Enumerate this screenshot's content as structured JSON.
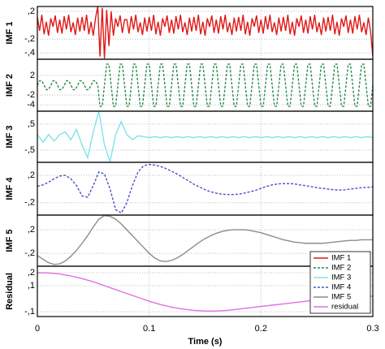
{
  "chart_data": [
    {
      "type": "line",
      "ylabel": "IMF 1",
      "xlim": [
        0,
        0.3
      ],
      "ylim": [
        -0.49,
        0.27
      ],
      "yticks": [
        {
          "value": 0.2,
          "label": ",2"
        },
        {
          "value": -0.2,
          "label": "-,2"
        },
        {
          "value": -0.4,
          "label": "-,4"
        }
      ],
      "x": [
        0,
        0.002,
        0.004,
        0.006,
        0.008,
        0.01,
        0.012,
        0.014,
        0.016,
        0.018,
        0.02,
        0.022,
        0.024,
        0.026,
        0.028,
        0.03,
        0.032,
        0.034,
        0.036,
        0.038,
        0.04,
        0.042,
        0.044,
        0.046,
        0.048,
        0.05,
        0.052,
        0.054,
        0.056,
        0.058,
        0.06,
        0.062,
        0.064,
        0.066,
        0.068,
        0.07,
        0.072,
        0.074,
        0.076,
        0.078,
        0.08,
        0.082,
        0.084,
        0.086,
        0.088,
        0.09,
        0.092,
        0.094,
        0.096,
        0.098,
        0.1,
        0.102,
        0.104,
        0.106,
        0.108,
        0.11,
        0.112,
        0.114,
        0.116,
        0.118,
        0.12,
        0.122,
        0.124,
        0.126,
        0.128,
        0.13,
        0.132,
        0.134,
        0.136,
        0.138,
        0.14,
        0.142,
        0.144,
        0.146,
        0.148,
        0.15,
        0.152,
        0.154,
        0.156,
        0.158,
        0.16,
        0.162,
        0.164,
        0.166,
        0.168,
        0.17,
        0.172,
        0.174,
        0.176,
        0.178,
        0.18,
        0.182,
        0.184,
        0.186,
        0.188,
        0.19,
        0.192,
        0.194,
        0.196,
        0.198,
        0.2,
        0.202,
        0.204,
        0.206,
        0.208,
        0.21,
        0.212,
        0.214,
        0.216,
        0.218,
        0.22,
        0.222,
        0.224,
        0.226,
        0.228,
        0.23,
        0.232,
        0.234,
        0.236,
        0.238,
        0.24,
        0.242,
        0.244,
        0.246,
        0.248,
        0.25,
        0.252,
        0.254,
        0.256,
        0.258,
        0.26,
        0.262,
        0.264,
        0.266,
        0.268,
        0.27,
        0.272,
        0.274,
        0.276,
        0.278,
        0.28,
        0.282,
        0.284,
        0.286,
        0.288,
        0.29,
        0.292,
        0.294,
        0.296,
        0.298,
        0.3
      ],
      "series": [
        {
          "name": "IMF 1",
          "color": "#e01818",
          "dashed": false,
          "values": [
            0.12,
            -0.08,
            0.15,
            -0.13,
            0.05,
            -0.15,
            0.1,
            -0.02,
            0.14,
            -0.11,
            0.08,
            -0.12,
            0.13,
            -0.06,
            0.15,
            -0.1,
            0.04,
            -0.14,
            0.11,
            -0.09,
            0.12,
            -0.08,
            0.15,
            -0.13,
            0.05,
            -0.15,
            0.1,
            0.27,
            -0.45,
            0.25,
            -0.48,
            0.22,
            -0.3,
            0.2,
            -0.15,
            0.1,
            -0.02,
            0.14,
            -0.11,
            0.08,
            0.08,
            -0.12,
            0.13,
            -0.06,
            0.15,
            -0.1,
            0.04,
            -0.14,
            0.11,
            -0.09,
            0.12,
            -0.08,
            0.15,
            -0.13,
            0.05,
            -0.15,
            0.1,
            -0.02,
            0.14,
            -0.11,
            0.08,
            -0.12,
            0.13,
            -0.06,
            0.15,
            -0.1,
            0.04,
            -0.14,
            0.11,
            -0.09,
            0.12,
            -0.08,
            0.15,
            -0.13,
            0.05,
            -0.15,
            0.1,
            -0.02,
            0.14,
            -0.11,
            0.08,
            -0.12,
            0.13,
            -0.06,
            0.15,
            -0.1,
            0.04,
            -0.14,
            0.11,
            -0.09,
            0.12,
            -0.08,
            0.15,
            -0.13,
            0.05,
            -0.15,
            0.1,
            -0.02,
            0.14,
            -0.11,
            0.08,
            -0.12,
            0.13,
            -0.06,
            0.15,
            -0.1,
            0.04,
            -0.14,
            0.11,
            -0.09,
            0.12,
            -0.08,
            0.15,
            -0.13,
            0.05,
            -0.15,
            0.1,
            -0.02,
            0.14,
            -0.11,
            0.08,
            -0.12,
            0.13,
            -0.06,
            0.15,
            -0.1,
            0.04,
            -0.14,
            0.11,
            -0.09,
            0.12,
            -0.08,
            0.15,
            -0.13,
            0.05,
            -0.15,
            0.1,
            -0.02,
            0.14,
            -0.11,
            0.08,
            -0.12,
            0.13,
            -0.06,
            0.15,
            -0.1,
            0.04,
            -0.14,
            0.11,
            -0.09,
            -0.45
          ]
        }
      ]
    },
    {
      "type": "line",
      "ylabel": "IMF 2",
      "xlim": [
        0,
        0.3
      ],
      "ylim": [
        -5.3,
        5.3
      ],
      "yticks": [
        2,
        -2,
        -4
      ],
      "x": [
        0,
        0.002,
        0.004,
        0.006,
        0.008,
        0.01,
        0.012,
        0.014,
        0.016,
        0.018,
        0.02,
        0.022,
        0.024,
        0.026,
        0.028,
        0.03,
        0.032,
        0.034,
        0.036,
        0.038,
        0.04,
        0.042,
        0.044,
        0.046,
        0.048,
        0.05,
        0.052,
        0.054,
        0.056,
        0.058,
        0.06,
        0.062,
        0.064,
        0.066,
        0.068,
        0.07,
        0.072,
        0.074,
        0.076,
        0.078,
        0.08,
        0.082,
        0.084,
        0.086,
        0.088,
        0.09,
        0.092,
        0.094,
        0.096,
        0.098,
        0.1,
        0.102,
        0.104,
        0.106,
        0.108,
        0.11,
        0.112,
        0.114,
        0.116,
        0.118,
        0.12,
        0.122,
        0.124,
        0.126,
        0.128,
        0.13,
        0.132,
        0.134,
        0.136,
        0.138,
        0.14,
        0.142,
        0.144,
        0.146,
        0.148,
        0.15,
        0.152,
        0.154,
        0.156,
        0.158,
        0.16,
        0.162,
        0.164,
        0.166,
        0.168,
        0.17,
        0.172,
        0.174,
        0.176,
        0.178,
        0.18,
        0.182,
        0.184,
        0.186,
        0.188,
        0.19,
        0.192,
        0.194,
        0.196,
        0.198,
        0.2,
        0.202,
        0.204,
        0.206,
        0.208,
        0.21,
        0.212,
        0.214,
        0.216,
        0.218,
        0.22,
        0.222,
        0.224,
        0.226,
        0.228,
        0.23,
        0.232,
        0.234,
        0.236,
        0.238,
        0.24,
        0.242,
        0.244,
        0.246,
        0.248,
        0.25,
        0.252,
        0.254,
        0.256,
        0.258,
        0.26,
        0.262,
        0.264,
        0.266,
        0.268,
        0.27,
        0.272,
        0.274,
        0.276,
        0.278,
        0.28,
        0.282,
        0.284,
        0.286,
        0.288,
        0.29,
        0.292,
        0.294,
        0.296,
        0.298,
        0.3
      ],
      "series": [
        {
          "name": "IMF 2",
          "color": "#2a8a4a",
          "dashed": true,
          "values": [
            0,
            0.9,
            0.9,
            0,
            -0.9,
            -0.9,
            0,
            0.9,
            0.9,
            0,
            -0.9,
            -0.9,
            0,
            0.9,
            0.9,
            0,
            -0.9,
            -0.9,
            0,
            0.9,
            0.9,
            0,
            -0.9,
            -0.9,
            0,
            0.9,
            0.9,
            0,
            -4.3,
            -4.3,
            0,
            4.3,
            4.3,
            0,
            -4.3,
            -4.3,
            0,
            4.3,
            4.3,
            0,
            -4.3,
            -4.3,
            0,
            4.3,
            4.3,
            0,
            -4.3,
            -4.3,
            0,
            4.3,
            4.3,
            0,
            -4.3,
            -4.3,
            0,
            4.3,
            4.3,
            0,
            -4.3,
            -4.3,
            0,
            4.3,
            4.3,
            0,
            -4.3,
            -4.3,
            0,
            4.3,
            4.3,
            0,
            -4.3,
            -4.3,
            0,
            4.3,
            4.3,
            0,
            -4.3,
            -4.3,
            0,
            4.3,
            4.3,
            0,
            -4.3,
            -4.3,
            0,
            4.3,
            4.3,
            0,
            -4.3,
            -4.3,
            0,
            4.3,
            4.3,
            0,
            -4.3,
            -4.3,
            0,
            4.3,
            4.3,
            0,
            -4.3,
            -4.3,
            0,
            4.3,
            4.3,
            0,
            -4.3,
            -4.3,
            0,
            4.3,
            4.3,
            0,
            -4.3,
            -4.3,
            0,
            4.3,
            4.3,
            0,
            -4.3,
            -4.3,
            0,
            4.3,
            4.3,
            0,
            -4.3,
            -4.3,
            0,
            4.3,
            4.3,
            0,
            -4.3,
            -4.3,
            0,
            4.3,
            4.3,
            0,
            -4.3,
            -4.3,
            0,
            4.3,
            4.3,
            0,
            -4.3,
            -4.3,
            0,
            4.3,
            4.3,
            0,
            -4.3,
            -4.3,
            0
          ]
        }
      ]
    },
    {
      "type": "line",
      "ylabel": "IMF 3",
      "xlim": [
        0,
        0.3
      ],
      "ylim": [
        -0.97,
        1.0
      ],
      "yticks": [
        {
          "value": 0.5,
          "label": ",5"
        },
        {
          "value": -0.5,
          "label": "-,5"
        }
      ],
      "x": [
        0,
        0.005,
        0.01,
        0.015,
        0.02,
        0.025,
        0.03,
        0.035,
        0.04,
        0.045,
        0.05,
        0.055,
        0.06,
        0.065,
        0.07,
        0.075,
        0.08,
        0.085,
        0.09,
        0.095,
        0.1,
        0.105,
        0.11,
        0.115,
        0.12,
        0.125,
        0.13,
        0.135,
        0.14,
        0.145,
        0.15,
        0.155,
        0.16,
        0.165,
        0.17,
        0.175,
        0.18,
        0.185,
        0.19,
        0.195,
        0.2,
        0.205,
        0.21,
        0.215,
        0.22,
        0.225,
        0.23,
        0.235,
        0.24,
        0.245,
        0.25,
        0.255,
        0.26,
        0.265,
        0.27,
        0.275,
        0.28,
        0.285,
        0.29,
        0.295,
        0.3
      ],
      "series": [
        {
          "name": "IMF 3",
          "color": "#7fe3ea",
          "dashed": false,
          "values": [
            0.1,
            -0.2,
            0.1,
            -0.15,
            0.1,
            0.2,
            -0.1,
            0.3,
            -0.3,
            -0.8,
            0.2,
            1.0,
            -0.3,
            -0.95,
            0.1,
            0.6,
            0.1,
            -0.1,
            0.05,
            0.02,
            -0.02,
            0.02,
            -0.02,
            0.02,
            -0.02,
            0.02,
            -0.02,
            0.02,
            -0.02,
            0.02,
            -0.02,
            0.02,
            -0.02,
            0.02,
            -0.02,
            0.02,
            -0.02,
            0.02,
            -0.02,
            0.02,
            -0.02,
            0.02,
            -0.02,
            0.02,
            -0.02,
            0.02,
            -0.02,
            0.02,
            -0.02,
            0.02,
            -0.02,
            0.02,
            -0.02,
            0.02,
            -0.02,
            0.02,
            -0.02,
            0.02,
            -0.02,
            0.02,
            -0.02
          ]
        }
      ]
    },
    {
      "type": "line",
      "ylabel": "IMF 4",
      "xlim": [
        0,
        0.3
      ],
      "ylim": [
        -0.38,
        0.39
      ],
      "yticks": [
        {
          "value": 0.2,
          "label": ",2"
        },
        {
          "value": -0.2,
          "label": "-,2"
        }
      ],
      "x": [
        0,
        0.005,
        0.01,
        0.015,
        0.02,
        0.025,
        0.03,
        0.035,
        0.04,
        0.045,
        0.05,
        0.055,
        0.06,
        0.065,
        0.07,
        0.075,
        0.08,
        0.085,
        0.09,
        0.095,
        0.1,
        0.105,
        0.11,
        0.115,
        0.12,
        0.125,
        0.13,
        0.135,
        0.14,
        0.145,
        0.15,
        0.155,
        0.16,
        0.165,
        0.17,
        0.175,
        0.18,
        0.185,
        0.19,
        0.195,
        0.2,
        0.205,
        0.21,
        0.215,
        0.22,
        0.225,
        0.23,
        0.235,
        0.24,
        0.245,
        0.25,
        0.255,
        0.26,
        0.265,
        0.27,
        0.275,
        0.28,
        0.285,
        0.29,
        0.295,
        0.3
      ],
      "series": [
        {
          "name": "IMF 4",
          "color": "#4a52c8",
          "dashed": true,
          "values": [
            0.04,
            0.06,
            0.1,
            0.15,
            0.19,
            0.2,
            0.15,
            0.05,
            -0.1,
            -0.12,
            0.05,
            0.25,
            0.22,
            0,
            -0.3,
            -0.35,
            -0.2,
            0.05,
            0.25,
            0.34,
            0.36,
            0.35,
            0.33,
            0.3,
            0.26,
            0.22,
            0.17,
            0.12,
            0.07,
            0.03,
            -0.01,
            -0.04,
            -0.06,
            -0.075,
            -0.08,
            -0.08,
            -0.075,
            -0.06,
            -0.04,
            -0.02,
            0.01,
            0.04,
            0.06,
            0.075,
            0.08,
            0.08,
            0.075,
            0.06,
            0.05,
            0.035,
            0.02,
            0.01,
            0,
            -0.01,
            -0.015,
            -0.01,
            0,
            0.01,
            0.02,
            0.025,
            0.03
          ]
        }
      ]
    },
    {
      "type": "line",
      "ylabel": "IMF 5",
      "xlim": [
        0,
        0.3
      ],
      "ylim": [
        -0.42,
        0.45
      ],
      "yticks": [
        {
          "value": 0.2,
          "label": ",2"
        },
        {
          "value": -0.2,
          "label": "-,2"
        }
      ],
      "x": [
        0,
        0.005,
        0.01,
        0.015,
        0.02,
        0.025,
        0.03,
        0.035,
        0.04,
        0.045,
        0.05,
        0.055,
        0.06,
        0.065,
        0.07,
        0.075,
        0.08,
        0.085,
        0.09,
        0.095,
        0.1,
        0.105,
        0.11,
        0.115,
        0.12,
        0.125,
        0.13,
        0.135,
        0.14,
        0.145,
        0.15,
        0.155,
        0.16,
        0.165,
        0.17,
        0.175,
        0.18,
        0.185,
        0.19,
        0.195,
        0.2,
        0.205,
        0.21,
        0.215,
        0.22,
        0.225,
        0.23,
        0.235,
        0.24,
        0.245,
        0.25,
        0.255,
        0.26,
        0.265,
        0.27,
        0.275,
        0.28,
        0.285,
        0.29,
        0.295,
        0.3
      ],
      "series": [
        {
          "name": "IMF 5",
          "color": "#8c8c8c",
          "dashed": false,
          "values": [
            -0.24,
            -0.3,
            -0.36,
            -0.39,
            -0.38,
            -0.33,
            -0.25,
            -0.15,
            -0.03,
            0.1,
            0.25,
            0.38,
            0.44,
            0.43,
            0.38,
            0.3,
            0.2,
            0.1,
            0,
            -0.1,
            -0.2,
            -0.28,
            -0.33,
            -0.34,
            -0.32,
            -0.28,
            -0.22,
            -0.15,
            -0.08,
            -0.01,
            0.05,
            0.1,
            0.14,
            0.17,
            0.19,
            0.2,
            0.2,
            0.2,
            0.19,
            0.17,
            0.15,
            0.12,
            0.09,
            0.06,
            0.03,
            0.01,
            -0.01,
            -0.02,
            -0.03,
            -0.03,
            -0.03,
            -0.03,
            -0.02,
            -0.01,
            0,
            0.01,
            0.02,
            0.02,
            0.03,
            0.03,
            0.03
          ]
        }
      ]
    },
    {
      "type": "line",
      "ylabel": "Residual",
      "xlabel": "Time (s)",
      "xlim": [
        0,
        0.3
      ],
      "ylim": [
        -0.1375,
        0.25
      ],
      "xticks": [
        0,
        0.1,
        0.2,
        0.3
      ],
      "yticks": [
        {
          "value": 0.2,
          "label": ",2"
        },
        {
          "value": 0.1,
          "label": ",1"
        },
        {
          "value": -0.1,
          "label": "-,1"
        }
      ],
      "legend": "lower right",
      "x": [
        0,
        0.01,
        0.02,
        0.03,
        0.04,
        0.05,
        0.06,
        0.07,
        0.08,
        0.09,
        0.1,
        0.11,
        0.12,
        0.13,
        0.14,
        0.15,
        0.16,
        0.17,
        0.18,
        0.19,
        0.2,
        0.21,
        0.22,
        0.23,
        0.24,
        0.25,
        0.26,
        0.27,
        0.28,
        0.29,
        0.3
      ],
      "series": [
        {
          "name": "residual",
          "color": "#e070e0",
          "dashed": false,
          "values": [
            0.2,
            0.198,
            0.19,
            0.175,
            0.155,
            0.13,
            0.1,
            0.07,
            0.04,
            0.01,
            -0.02,
            -0.045,
            -0.065,
            -0.08,
            -0.09,
            -0.095,
            -0.095,
            -0.09,
            -0.08,
            -0.07,
            -0.06,
            -0.05,
            -0.04,
            -0.03,
            -0.02,
            -0.01,
            0,
            0.005,
            0.01,
            0.015,
            0.02
          ]
        }
      ]
    }
  ]
}
